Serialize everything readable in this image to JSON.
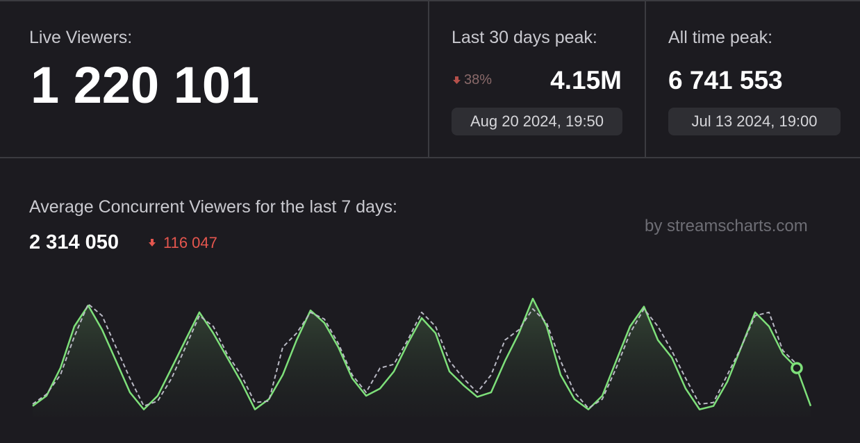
{
  "live": {
    "label": "Live Viewers:",
    "value": "1 220 101"
  },
  "month_peak": {
    "label": "Last 30 days peak:",
    "change": "38%",
    "value": "4.15M",
    "date": "Aug 20 2024, 19:50"
  },
  "all_time_peak": {
    "label": "All time peak:",
    "value": "6 741 553",
    "date": "Jul 13 2024, 19:00"
  },
  "average": {
    "label": "Average Concurrent Viewers for the last 7 days:",
    "value": "2 314 050",
    "change": "116 047",
    "credit": "by streamscharts.com"
  },
  "chart_data": {
    "type": "line",
    "ylim": [
      850000,
      4420000
    ],
    "marker_index": 55,
    "series": [
      {
        "color": "#7ee07a",
        "style": "solid",
        "values": [
          1130000,
          1400000,
          2130000,
          3230000,
          3780000,
          3140000,
          2320000,
          1490000,
          1040000,
          1400000,
          2130000,
          2870000,
          3600000,
          3050000,
          2410000,
          1770000,
          1040000,
          1310000,
          1950000,
          2870000,
          3650000,
          3320000,
          2680000,
          1860000,
          1400000,
          1590000,
          2040000,
          2780000,
          3450000,
          3050000,
          2040000,
          1680000,
          1370000,
          1490000,
          2320000,
          3050000,
          3960000,
          3230000,
          1950000,
          1310000,
          1040000,
          1400000,
          2320000,
          3230000,
          3750000,
          2870000,
          2410000,
          1590000,
          1040000,
          1130000,
          1770000,
          2680000,
          3600000,
          3230000,
          2500000,
          2130000,
          1130000
        ]
      },
      {
        "color": "#b9b9c4",
        "style": "dashed",
        "values": [
          1180000,
          1440000,
          1950000,
          2960000,
          3820000,
          3510000,
          2680000,
          1860000,
          1130000,
          1260000,
          1860000,
          2680000,
          3510000,
          3230000,
          2500000,
          1950000,
          1220000,
          1260000,
          2680000,
          3050000,
          3600000,
          3420000,
          2780000,
          1950000,
          1490000,
          2130000,
          2230000,
          2870000,
          3600000,
          3230000,
          2320000,
          1860000,
          1490000,
          1950000,
          2870000,
          3140000,
          3690000,
          3320000,
          2320000,
          1490000,
          1070000,
          1310000,
          2130000,
          3050000,
          3690000,
          3230000,
          2590000,
          1860000,
          1180000,
          1220000,
          1950000,
          2680000,
          3510000,
          3600000,
          2590000,
          2230000,
          null
        ]
      }
    ]
  }
}
